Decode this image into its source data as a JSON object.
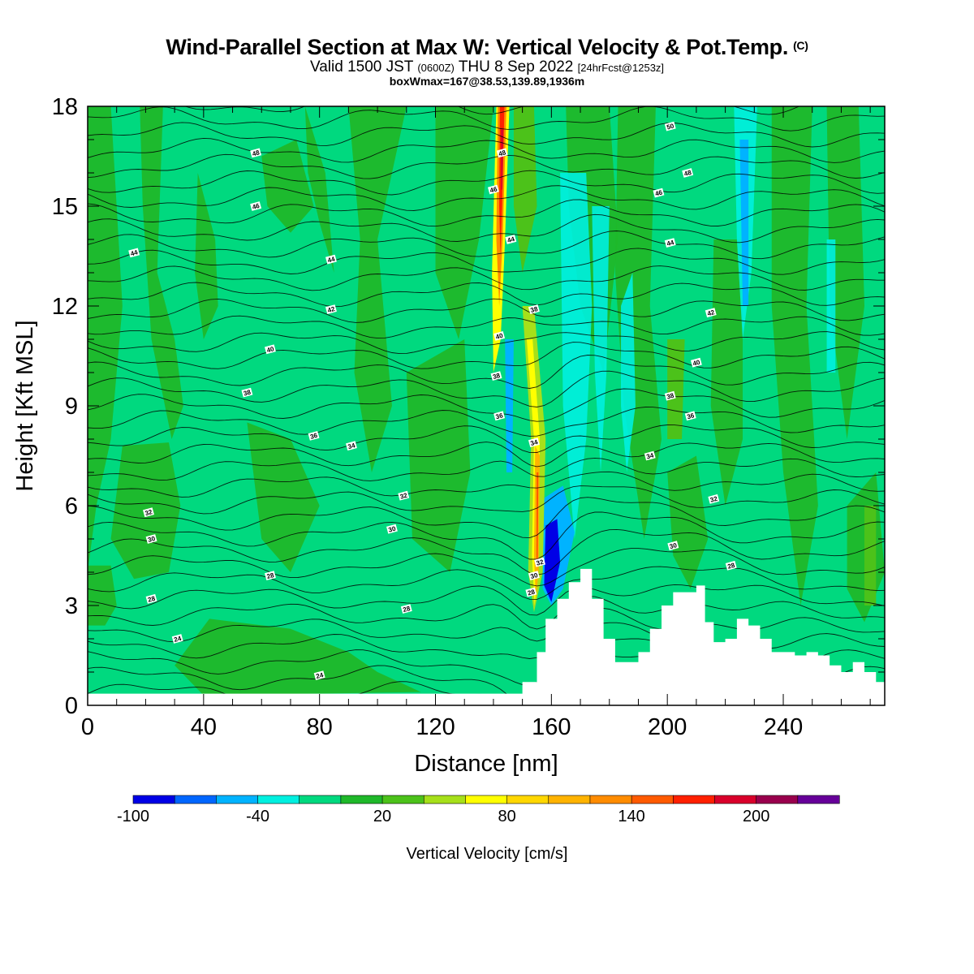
{
  "titles": {
    "main": "Wind-Parallel Section at Max W: Vertical Velocity & Pot.Temp.",
    "copyright": "(C)",
    "valid_a": "Valid 1500 JST",
    "valid_zulu": "(0600Z)",
    "valid_b": "THU 8 Sep 2022",
    "forecast": "[24hrFcst@1253z]",
    "box": "boxWmax=167@38.53,139.89,1936m"
  },
  "chart_data": {
    "type": "heatmap",
    "title": "Wind-Parallel Section at Max W: Vertical Velocity & Pot.Temp.",
    "xlabel": "Distance [nm]",
    "ylabel": "Height [Kft MSL]",
    "xlim": [
      0,
      275
    ],
    "ylim": [
      0,
      18
    ],
    "x_ticks": [
      "0",
      "40",
      "80",
      "120",
      "160",
      "200",
      "240"
    ],
    "y_ticks": [
      "0",
      "3",
      "6",
      "9",
      "12",
      "15",
      "18"
    ],
    "grid": false,
    "colorbar": {
      "label": "Vertical Velocity [cm/s]",
      "tick_labels": [
        "-100",
        "-40",
        "20",
        "80",
        "140",
        "200"
      ],
      "colors": [
        "#0000e6",
        "#0066ff",
        "#00b3ff",
        "#00f0e0",
        "#00d97f",
        "#1fb82a",
        "#4cc21a",
        "#a6e01a",
        "#ffff00",
        "#ffd700",
        "#ffb300",
        "#ff8c00",
        "#ff5a00",
        "#ff2000",
        "#d9002b",
        "#99004d",
        "#660099"
      ]
    },
    "max_w": {
      "value": 167,
      "lat": 38.53,
      "lon": 139.89,
      "height_m": 1936,
      "distance_nm": 143
    },
    "terrain_profile": {
      "x": [
        0,
        145,
        150,
        155,
        158,
        162,
        166,
        170,
        174,
        178,
        182,
        186,
        190,
        194,
        198,
        202,
        206,
        210,
        213,
        216,
        220,
        224,
        228,
        232,
        236,
        240,
        244,
        248,
        252,
        256,
        260,
        264,
        268,
        272,
        275
      ],
      "height_kft": [
        0.35,
        0.35,
        0.7,
        1.6,
        2.6,
        3.2,
        3.7,
        4.1,
        3.2,
        2.0,
        1.3,
        1.3,
        1.6,
        2.3,
        3.0,
        3.4,
        3.4,
        3.6,
        2.5,
        1.9,
        2.0,
        2.6,
        2.4,
        2.0,
        1.6,
        1.6,
        1.5,
        1.6,
        1.5,
        1.2,
        1.0,
        1.3,
        1.0,
        0.7,
        0.6
      ]
    },
    "theta_contour_labels": [
      {
        "x": 80,
        "y": 0.9,
        "label": "24"
      },
      {
        "x": 31,
        "y": 2.0,
        "label": "24"
      },
      {
        "x": 22,
        "y": 3.2,
        "label": "28"
      },
      {
        "x": 63,
        "y": 3.9,
        "label": "28"
      },
      {
        "x": 110,
        "y": 2.9,
        "label": "28"
      },
      {
        "x": 22,
        "y": 5.0,
        "label": "30"
      },
      {
        "x": 21,
        "y": 5.8,
        "label": "32"
      },
      {
        "x": 105,
        "y": 5.3,
        "label": "30"
      },
      {
        "x": 109,
        "y": 6.3,
        "label": "32"
      },
      {
        "x": 78,
        "y": 8.1,
        "label": "36"
      },
      {
        "x": 91,
        "y": 7.8,
        "label": "34"
      },
      {
        "x": 55,
        "y": 9.4,
        "label": "38"
      },
      {
        "x": 63,
        "y": 10.7,
        "label": "40"
      },
      {
        "x": 84,
        "y": 11.9,
        "label": "42"
      },
      {
        "x": 84,
        "y": 13.4,
        "label": "44"
      },
      {
        "x": 16,
        "y": 13.6,
        "label": "44"
      },
      {
        "x": 58,
        "y": 15.0,
        "label": "46"
      },
      {
        "x": 58,
        "y": 16.6,
        "label": "48"
      },
      {
        "x": 140,
        "y": 15.5,
        "label": "46"
      },
      {
        "x": 143,
        "y": 16.6,
        "label": "48"
      },
      {
        "x": 146,
        "y": 14.0,
        "label": "44"
      },
      {
        "x": 154,
        "y": 11.9,
        "label": "38"
      },
      {
        "x": 142,
        "y": 11.1,
        "label": "40"
      },
      {
        "x": 141,
        "y": 9.9,
        "label": "38"
      },
      {
        "x": 142,
        "y": 8.7,
        "label": "36"
      },
      {
        "x": 154,
        "y": 7.9,
        "label": "34"
      },
      {
        "x": 156,
        "y": 4.3,
        "label": "32"
      },
      {
        "x": 154,
        "y": 3.9,
        "label": "30"
      },
      {
        "x": 153,
        "y": 3.4,
        "label": "28"
      },
      {
        "x": 201,
        "y": 17.4,
        "label": "50"
      },
      {
        "x": 207,
        "y": 16.0,
        "label": "48"
      },
      {
        "x": 197,
        "y": 15.4,
        "label": "46"
      },
      {
        "x": 201,
        "y": 13.9,
        "label": "44"
      },
      {
        "x": 215,
        "y": 11.8,
        "label": "42"
      },
      {
        "x": 210,
        "y": 10.3,
        "label": "40"
      },
      {
        "x": 201,
        "y": 9.3,
        "label": "38"
      },
      {
        "x": 208,
        "y": 8.7,
        "label": "36"
      },
      {
        "x": 194,
        "y": 7.5,
        "label": "34"
      },
      {
        "x": 216,
        "y": 6.2,
        "label": "32"
      },
      {
        "x": 202,
        "y": 4.8,
        "label": "30"
      },
      {
        "x": 222,
        "y": 4.2,
        "label": "28"
      }
    ]
  }
}
